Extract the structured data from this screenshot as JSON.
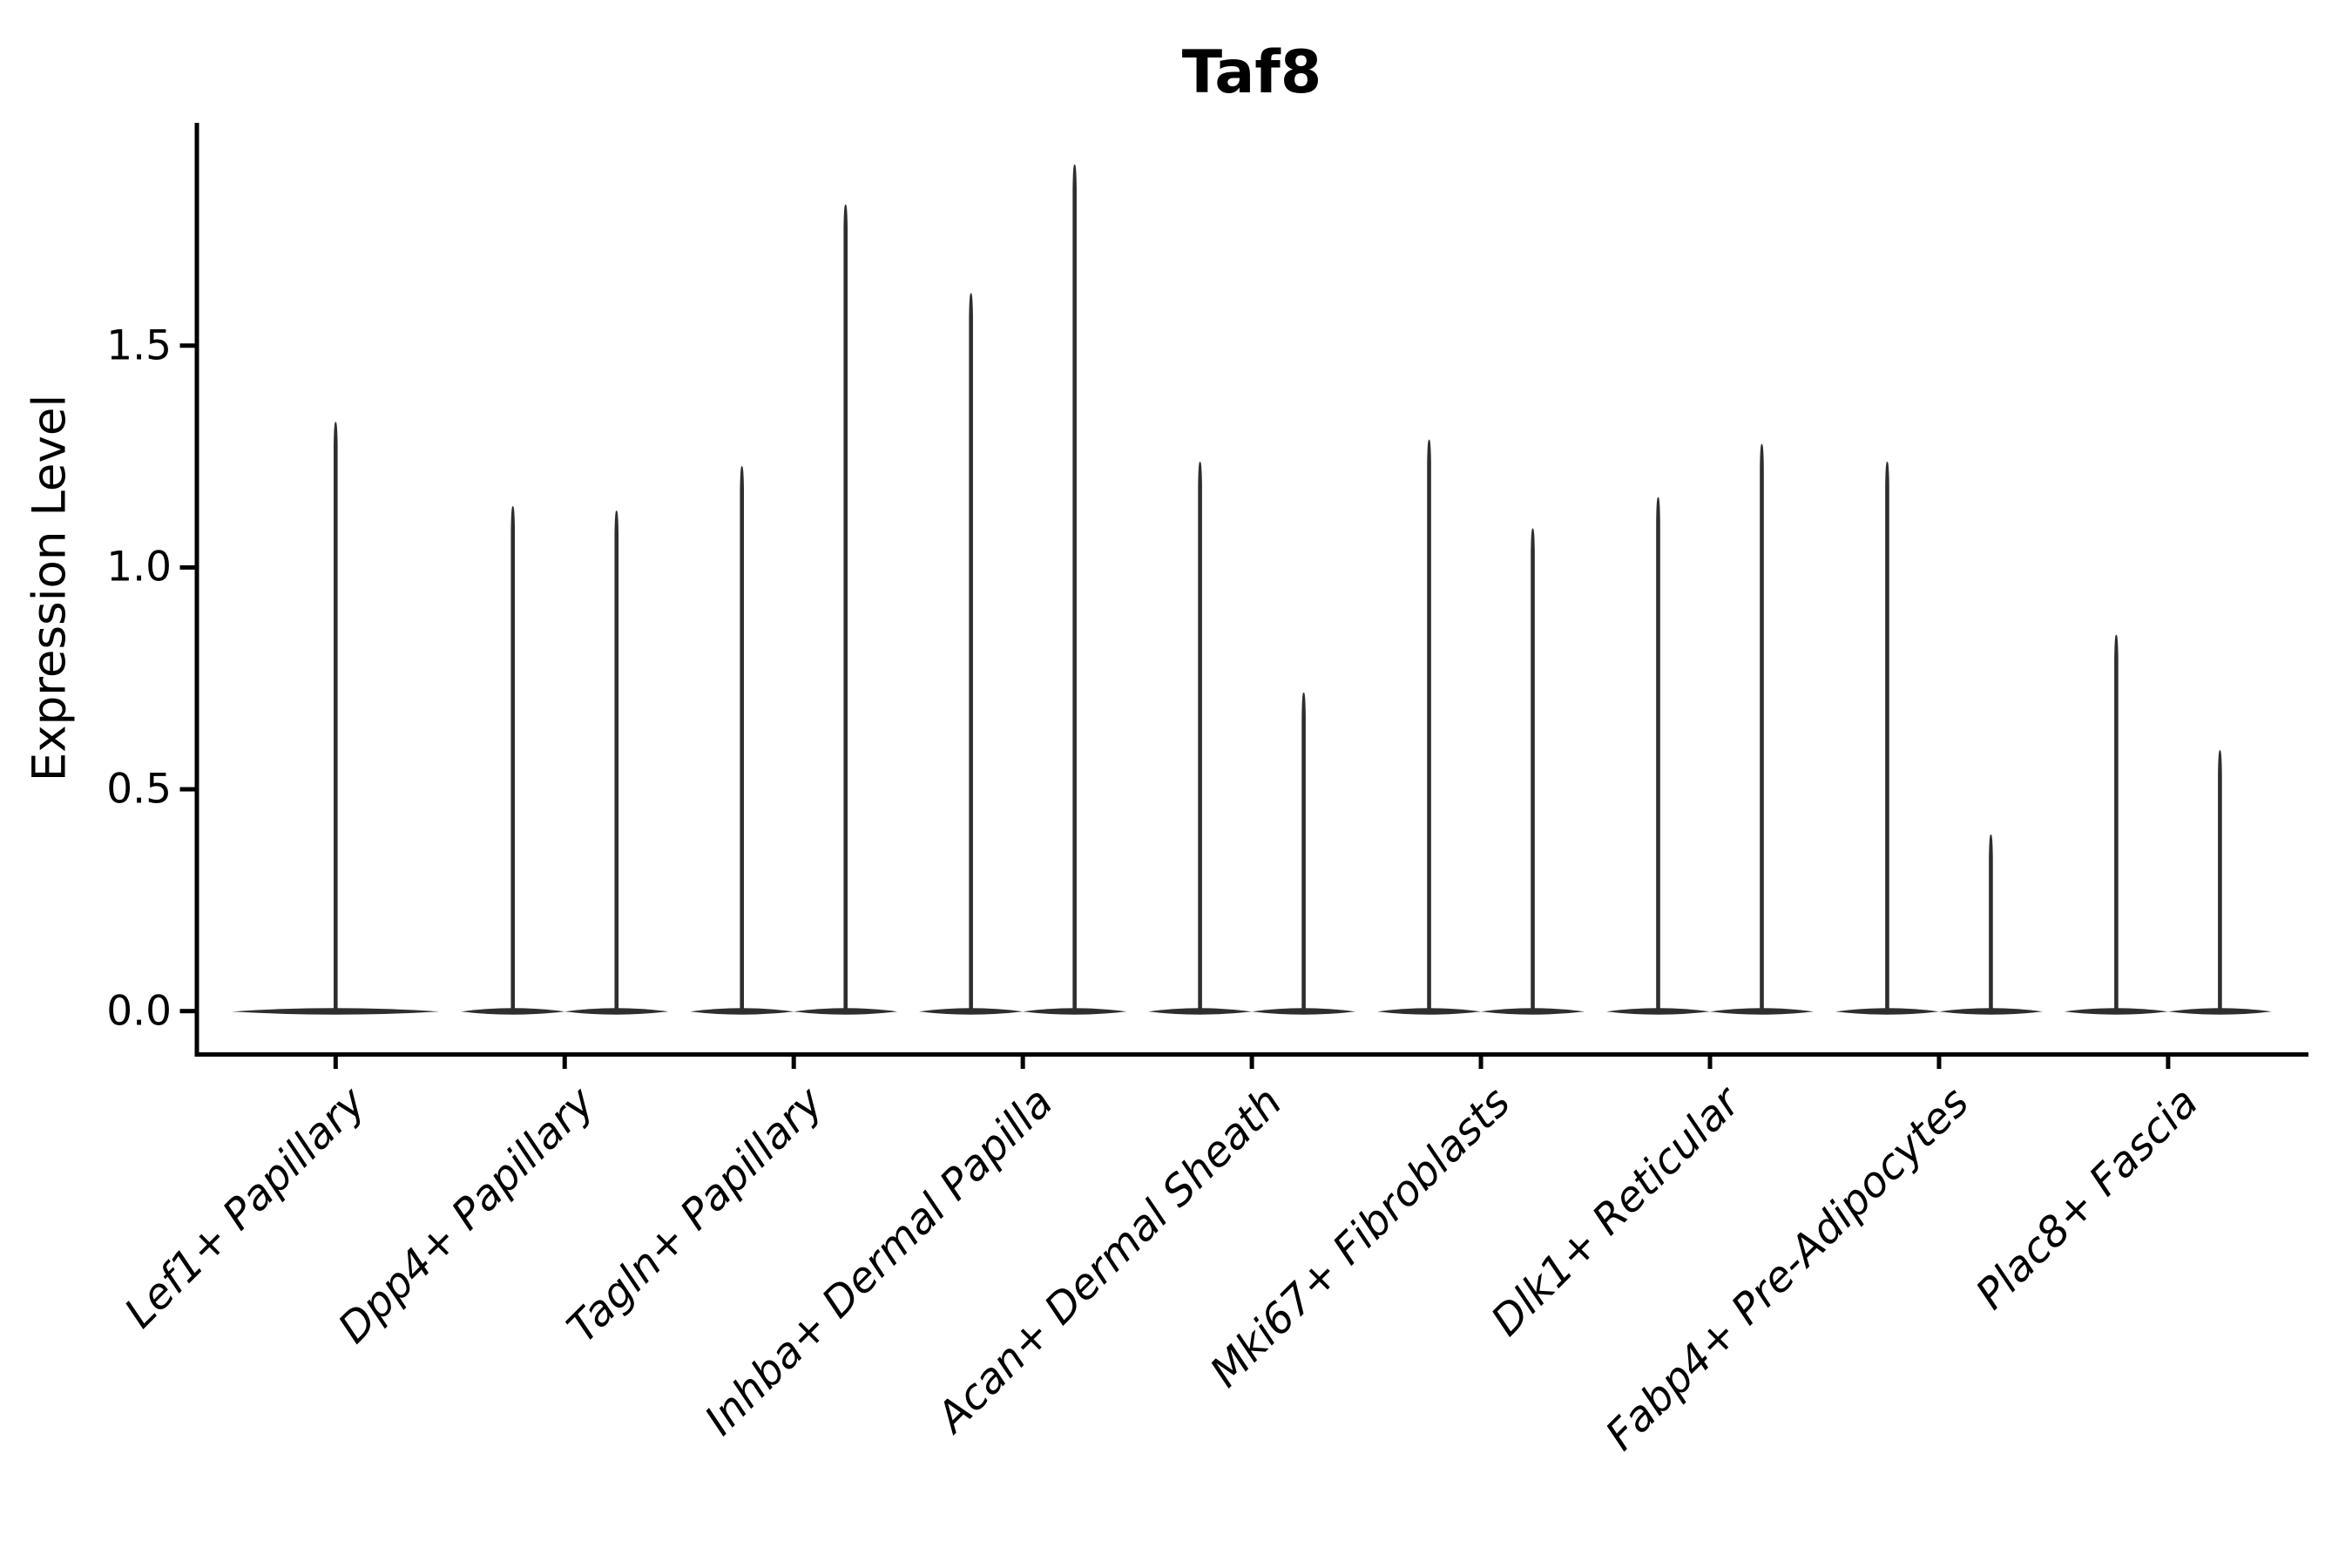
{
  "page": {
    "background": "#ffffff"
  },
  "chart_data": {
    "type": "violin",
    "title": "Taf8",
    "ylabel": "Expression Level",
    "xlabel": "",
    "categories": [
      "Lef1+ Papillary",
      "Dpp4+ Papillary",
      "Tagln+ Papillary",
      "Inhba+ Dermal Papilla",
      "Acan+ Dermal Sheath",
      "Mki67+ Fibroblasts",
      "Dlk1+ Reticular",
      "Fabp4+ Pre-Adipocytes",
      "Plac8+ Fascia"
    ],
    "violin_peaks_per_category": [
      [
        1.33
      ],
      [
        1.14,
        1.13
      ],
      [
        1.23,
        1.82
      ],
      [
        1.62,
        1.91
      ],
      [
        1.24,
        0.72
      ],
      [
        1.29,
        1.09
      ],
      [
        1.16,
        1.28
      ],
      [
        1.24,
        0.4
      ],
      [
        0.85,
        0.59
      ]
    ],
    "shape_note": "needle violins: wide flat density at 0, thin spike up to max expression",
    "ytick_labels": [
      "0.0",
      "0.5",
      "1.0",
      "1.5"
    ],
    "ytick_values": [
      0.0,
      0.5,
      1.0,
      1.5
    ],
    "ylim": [
      -0.1,
      2.0
    ],
    "x_tick_rotation_deg": 45,
    "x_tick_style": "italic",
    "grid": false,
    "legend": null,
    "violin_color": "#2e2e2e",
    "axis_color": "#000000"
  }
}
